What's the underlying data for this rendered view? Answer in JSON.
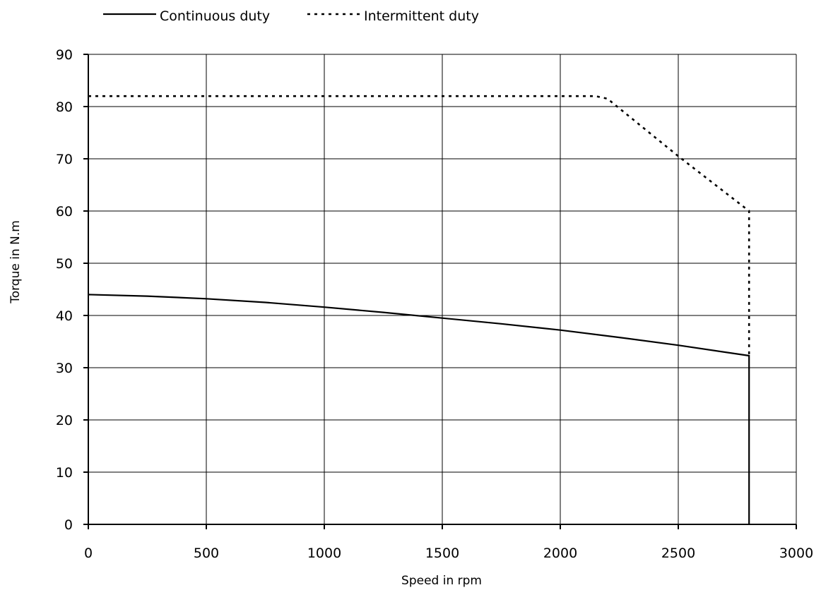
{
  "chart_data": {
    "type": "line",
    "title": "",
    "xlabel": "Speed in rpm",
    "ylabel": "Torque in N.m",
    "xlim": [
      0,
      3000
    ],
    "ylim": [
      0,
      90
    ],
    "x_ticks": [
      "0",
      "500",
      "1000",
      "1500",
      "2000",
      "2500",
      "3000"
    ],
    "y_ticks": [
      "0",
      "10",
      "20",
      "30",
      "40",
      "50",
      "60",
      "70",
      "80",
      "90"
    ],
    "x_tick_values": [
      0,
      500,
      1000,
      1500,
      2000,
      2500,
      3000
    ],
    "y_tick_values": [
      0,
      10,
      20,
      30,
      40,
      50,
      60,
      70,
      80,
      90
    ],
    "grid": true,
    "legend_position": "top-left",
    "series": [
      {
        "name": "Continuous duty",
        "style": "solid",
        "color": "#000000",
        "points": [
          [
            0,
            44
          ],
          [
            250,
            43.7
          ],
          [
            500,
            43.2
          ],
          [
            750,
            42.5
          ],
          [
            1000,
            41.6
          ],
          [
            1250,
            40.6
          ],
          [
            1500,
            39.5
          ],
          [
            1750,
            38.4
          ],
          [
            2000,
            37.2
          ],
          [
            2250,
            35.8
          ],
          [
            2500,
            34.3
          ],
          [
            2800,
            32.3
          ],
          [
            2800,
            0
          ]
        ]
      },
      {
        "name": "Intermittent duty",
        "style": "dotted",
        "color": "#000000",
        "points": [
          [
            0,
            82
          ],
          [
            2150,
            82
          ],
          [
            2200,
            81.5
          ],
          [
            2500,
            70.5
          ],
          [
            2800,
            60
          ],
          [
            2800,
            32.3
          ]
        ]
      }
    ]
  }
}
